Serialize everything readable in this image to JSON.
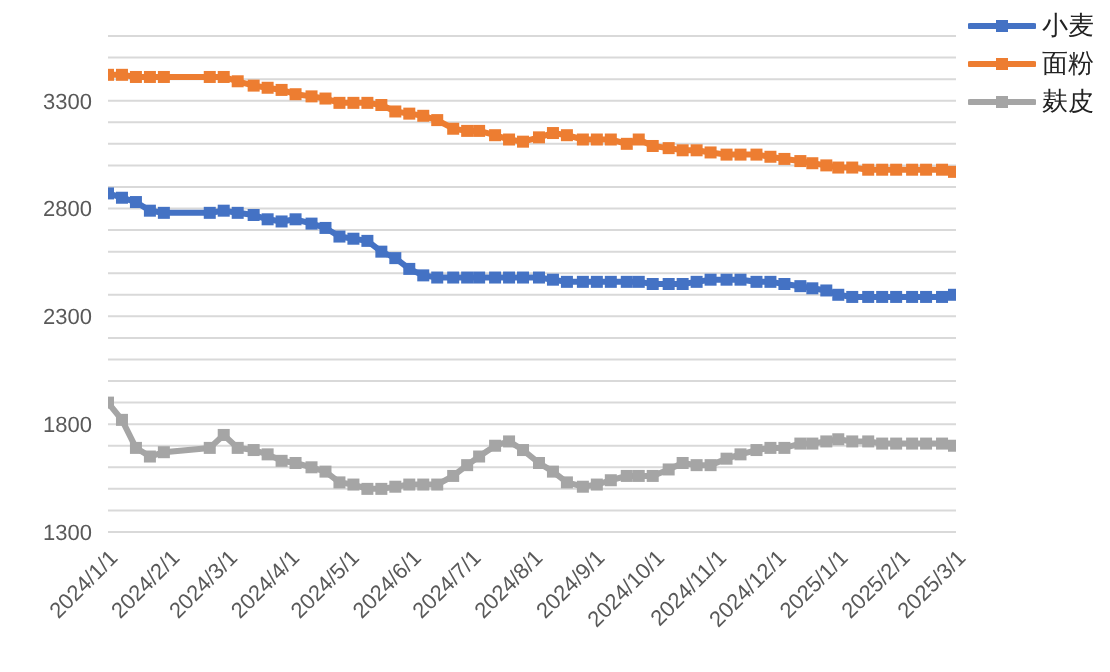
{
  "chart_data": {
    "type": "line",
    "x": [
      "2024-01-01",
      "2024-01-08",
      "2024-01-15",
      "2024-01-22",
      "2024-01-29",
      "2024-02-21",
      "2024-02-28",
      "2024-03-06",
      "2024-03-14",
      "2024-03-21",
      "2024-03-28",
      "2024-04-04",
      "2024-04-12",
      "2024-04-19",
      "2024-04-26",
      "2024-05-03",
      "2024-05-10",
      "2024-05-17",
      "2024-05-24",
      "2024-05-31",
      "2024-06-07",
      "2024-06-14",
      "2024-06-22",
      "2024-06-29",
      "2024-07-05",
      "2024-07-13",
      "2024-07-20",
      "2024-07-27",
      "2024-08-04",
      "2024-08-11",
      "2024-08-18",
      "2024-08-26",
      "2024-09-02",
      "2024-09-09",
      "2024-09-17",
      "2024-09-23",
      "2024-09-30",
      "2024-10-08",
      "2024-10-15",
      "2024-10-22",
      "2024-10-29",
      "2024-11-06",
      "2024-11-13",
      "2024-11-21",
      "2024-11-28",
      "2024-12-05",
      "2024-12-13",
      "2024-12-19",
      "2024-12-26",
      "2025-01-01",
      "2025-01-08",
      "2025-01-16",
      "2025-01-23",
      "2025-01-30",
      "2025-02-07",
      "2025-02-14",
      "2025-02-22",
      "2025-02-28"
    ],
    "series": [
      {
        "name": "小麦",
        "color": "#4472c4",
        "values": [
          2870,
          2850,
          2830,
          2790,
          2780,
          2780,
          2790,
          2780,
          2770,
          2750,
          2740,
          2750,
          2730,
          2710,
          2670,
          2660,
          2650,
          2600,
          2570,
          2520,
          2490,
          2480,
          2480,
          2480,
          2480,
          2480,
          2480,
          2480,
          2480,
          2470,
          2460,
          2460,
          2460,
          2460,
          2460,
          2460,
          2450,
          2450,
          2450,
          2460,
          2470,
          2470,
          2470,
          2460,
          2460,
          2450,
          2440,
          2430,
          2420,
          2400,
          2390,
          2390,
          2390,
          2390,
          2390,
          2390,
          2390,
          2400
        ]
      },
      {
        "name": "面粉",
        "color": "#ed7d31",
        "values": [
          3420,
          3420,
          3410,
          3410,
          3410,
          3410,
          3410,
          3390,
          3370,
          3360,
          3350,
          3330,
          3320,
          3310,
          3290,
          3290,
          3290,
          3280,
          3250,
          3240,
          3230,
          3210,
          3170,
          3160,
          3160,
          3140,
          3120,
          3110,
          3130,
          3150,
          3140,
          3120,
          3120,
          3120,
          3100,
          3120,
          3090,
          3080,
          3070,
          3070,
          3060,
          3050,
          3050,
          3050,
          3040,
          3030,
          3020,
          3010,
          3000,
          2990,
          2990,
          2980,
          2980,
          2980,
          2980,
          2980,
          2980,
          2970
        ]
      },
      {
        "name": "麸皮",
        "color": "#a5a5a5",
        "values": [
          1900,
          1820,
          1690,
          1650,
          1670,
          1690,
          1750,
          1690,
          1680,
          1660,
          1630,
          1620,
          1600,
          1580,
          1530,
          1520,
          1500,
          1500,
          1510,
          1520,
          1520,
          1520,
          1560,
          1610,
          1650,
          1700,
          1720,
          1680,
          1620,
          1580,
          1530,
          1510,
          1520,
          1540,
          1560,
          1560,
          1560,
          1590,
          1620,
          1610,
          1610,
          1640,
          1660,
          1680,
          1690,
          1690,
          1710,
          1710,
          1720,
          1730,
          1720,
          1720,
          1710,
          1710,
          1710,
          1710,
          1710,
          1700
        ]
      }
    ],
    "xlim": [
      "2024-01-01",
      "2025-03-01"
    ],
    "xticks": [
      {
        "value": "2024-01-01",
        "label": "2024/1/1"
      },
      {
        "value": "2024-02-01",
        "label": "2024/2/1"
      },
      {
        "value": "2024-03-01",
        "label": "2024/3/1"
      },
      {
        "value": "2024-04-01",
        "label": "2024/4/1"
      },
      {
        "value": "2024-05-01",
        "label": "2024/5/1"
      },
      {
        "value": "2024-06-01",
        "label": "2024/6/1"
      },
      {
        "value": "2024-07-01",
        "label": "2024/7/1"
      },
      {
        "value": "2024-08-01",
        "label": "2024/8/1"
      },
      {
        "value": "2024-09-01",
        "label": "2024/9/1"
      },
      {
        "value": "2024-10-01",
        "label": "2024/10/1"
      },
      {
        "value": "2024-11-01",
        "label": "2024/11/1"
      },
      {
        "value": "2024-12-01",
        "label": "2024/12/1"
      },
      {
        "value": "2025-01-01",
        "label": "2025/1/1"
      },
      {
        "value": "2025-02-01",
        "label": "2025/2/1"
      },
      {
        "value": "2025-03-01",
        "label": "2025/3/1"
      }
    ],
    "ylim": [
      1300,
      3600
    ],
    "yticks": [
      1300,
      {
        "value": 1400,
        "label": null
      },
      {
        "value": 1500,
        "label": null
      },
      {
        "value": 1600,
        "label": null
      },
      {
        "value": 1700,
        "label": null
      },
      1800,
      {
        "value": 1900,
        "label": null
      },
      {
        "value": 2000,
        "label": null
      },
      {
        "value": 2100,
        "label": null
      },
      {
        "value": 2200,
        "label": null
      },
      2300,
      {
        "value": 2400,
        "label": null
      },
      {
        "value": 2500,
        "label": null
      },
      {
        "value": 2600,
        "label": null
      },
      {
        "value": 2700,
        "label": null
      },
      2800,
      {
        "value": 2900,
        "label": null
      },
      {
        "value": 3000,
        "label": null
      },
      {
        "value": 3100,
        "label": null
      },
      {
        "value": 3200,
        "label": null
      },
      3300,
      {
        "value": 3400,
        "label": null
      },
      {
        "value": 3500,
        "label": null
      },
      {
        "value": 3600,
        "label": null
      }
    ],
    "grid": "y",
    "legend": "top right",
    "marker": "square",
    "line_style": "solid"
  }
}
